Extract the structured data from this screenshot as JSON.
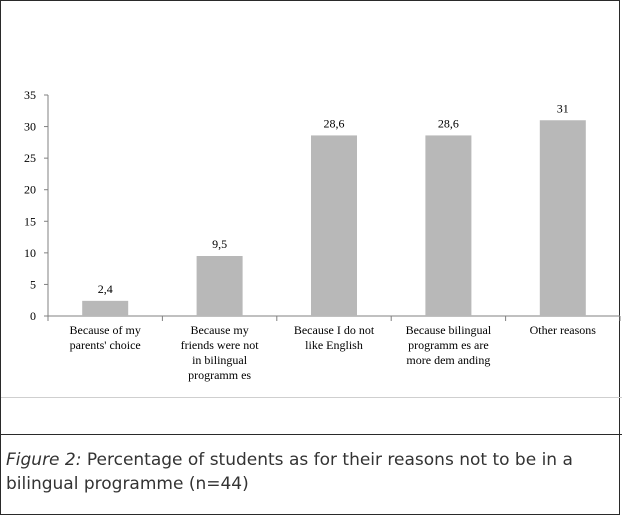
{
  "chart_data": {
    "type": "bar",
    "categories": [
      [
        "Because of my",
        "parents' choice"
      ],
      [
        "Because my",
        "friends were not",
        "in bilingual",
        "programm es"
      ],
      [
        "Because I do not",
        "like English"
      ],
      [
        "Because bilingual",
        "programm es are",
        "more dem anding"
      ],
      [
        "Other reasons"
      ]
    ],
    "values": [
      2.4,
      9.5,
      28.6,
      28.6,
      31
    ],
    "value_labels": [
      "2,4",
      "9,5",
      "28,6",
      "28,6",
      "31"
    ],
    "ylim": [
      0,
      35
    ],
    "yticks": [
      0,
      5,
      10,
      15,
      20,
      25,
      30,
      35
    ],
    "bar_color": "#b8b8b8",
    "grid": false
  },
  "caption": {
    "figure_label": "Figure 2:",
    "text": " Percentage of students as for their reasons not to be in a bilingual programme (n=44)"
  }
}
